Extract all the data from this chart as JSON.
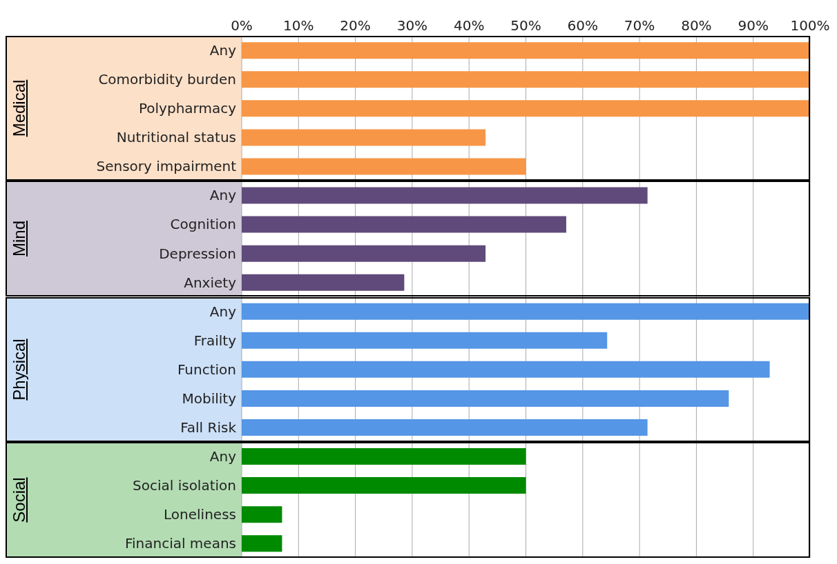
{
  "chart_data": {
    "type": "bar",
    "orientation": "horizontal",
    "categories": [
      "Any",
      "Comorbidity burden",
      "Polypharmacy",
      "Nutritional status",
      "Sensory impairment",
      "Any",
      "Cognition",
      "Depression",
      "Anxiety",
      "Any",
      "Frailty",
      "Function",
      "Mobility",
      "Fall Risk",
      "Any",
      "Social isolation",
      "Loneliness",
      "Financial means"
    ],
    "values": [
      100,
      100,
      100,
      42.9,
      50,
      71.4,
      57.1,
      42.9,
      28.6,
      100,
      64.3,
      92.9,
      85.7,
      71.4,
      50,
      50,
      7.1,
      7.1
    ],
    "colors": [
      "#f79646",
      "#f79646",
      "#f79646",
      "#f79646",
      "#f79646",
      "#604a7b",
      "#604a7b",
      "#604a7b",
      "#604a7b",
      "#5596e6",
      "#5596e6",
      "#5596e6",
      "#5596e6",
      "#5596e6",
      "#008a00",
      "#008a00",
      "#008a00",
      "#008a00"
    ],
    "annotations": [
      "Medical",
      "Mind",
      "Physical",
      "Social"
    ],
    "xlim": [
      0,
      100
    ],
    "xticks": [
      {
        "value": 0,
        "label": "0%"
      },
      {
        "value": 10,
        "label": "10%"
      },
      {
        "value": 20,
        "label": "20%"
      },
      {
        "value": 30,
        "label": "30%"
      },
      {
        "value": 40,
        "label": "40%"
      },
      {
        "value": 50,
        "label": "50%"
      },
      {
        "value": 60,
        "label": "60%"
      },
      {
        "value": 70,
        "label": "70%"
      },
      {
        "value": 80,
        "label": "80%"
      },
      {
        "value": 90,
        "label": "90%"
      },
      {
        "value": 100,
        "label": "100%"
      }
    ],
    "grid": "x",
    "legend": false
  }
}
